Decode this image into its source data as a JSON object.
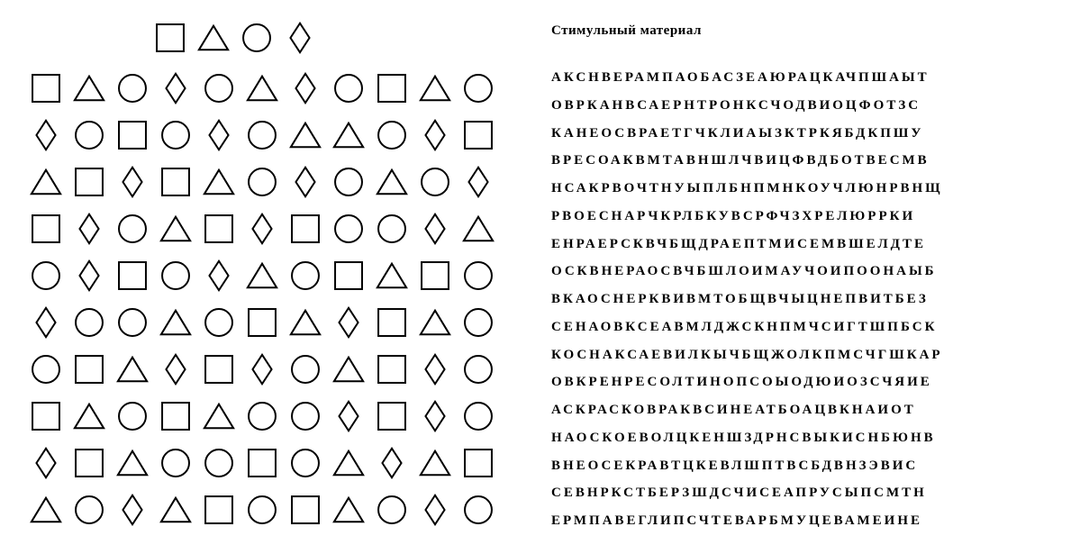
{
  "title": "Стимульный материал",
  "letter_rows": [
    "АКСНВЕРАМПАОБАСЗЕАЮРАЦКАЧПШАЫТ",
    "ОВРКАНВСАЕРНТРОНКСЧОДВИОЦФОТЗС",
    "КАНЕОСВРАЕТГЧКЛИАЫЗКТРКЯБДКПШУ",
    "ВРЕСОАКВМТАВНШЛЧВИЦФВДБОТВЕСМВ",
    "НСАКРВОЧТНУЫПЛБНПМНКОУЧЛЮНРВНЩ",
    "РВОЕСНАРЧКРЛБКУВСРФЧЗХРЕЛЮРРКИ",
    "ЕНРАЕРСКВЧБЩДРАЕПТМИСЕМВШЕЛДТЕ",
    "ОСКВНЕРАОСВЧБШЛОИМАУЧОИПООНАЫБ",
    "ВКАОСНЕРКВИВМТОБЩВЧЫЦНЕПВИТБЕЗ",
    "СЕНАОВКСЕАВМЛДЖСКНПМЧСИГТШПБСК",
    "КОСНАКСАЕВИЛКЫЧБЩЖОЛКПМСЧГШКАР",
    "ОВКРЕНРЕСОЛТИНОПСОЫОДЮИОЗСЧЯИЕ",
    "АСКРАСКОВРАКВСИНЕАТБОАЦВКНАИОТ",
    "НАОСКОЕВОЛЦКЕНШЗДРНСВЫКИСНБЮНВ",
    "ВНЕОСЕКРАВТЦКЕВЛШПТВСБДВНЗЭВИС",
    "СЕВНРКСТБЕРЗШДСЧИСЕАПРУСЫПСМТН",
    "ЕРМПАВЕГЛИПСЧТЕВАРБМУЦЕВАМЕИНЕ"
  ],
  "shape_header": [
    "square",
    "triangle",
    "circle",
    "diamond"
  ],
  "shape_rows": [
    [
      "square",
      "triangle",
      "circle",
      "diamond",
      "circle",
      "triangle",
      "diamond",
      "circle",
      "square",
      "triangle",
      "circle"
    ],
    [
      "diamond",
      "circle",
      "square",
      "circle",
      "diamond",
      "circle",
      "triangle",
      "triangle",
      "circle",
      "diamond",
      "square"
    ],
    [
      "triangle",
      "square",
      "diamond",
      "square",
      "triangle",
      "circle",
      "diamond",
      "circle",
      "triangle",
      "circle",
      "diamond"
    ],
    [
      "square",
      "diamond",
      "circle",
      "triangle",
      "square",
      "diamond",
      "square",
      "circle",
      "circle",
      "diamond",
      "triangle"
    ],
    [
      "circle",
      "diamond",
      "square",
      "circle",
      "diamond",
      "triangle",
      "circle",
      "square",
      "triangle",
      "square",
      "circle"
    ],
    [
      "diamond",
      "circle",
      "circle",
      "triangle",
      "circle",
      "square",
      "triangle",
      "diamond",
      "square",
      "triangle",
      "circle"
    ],
    [
      "circle",
      "square",
      "triangle",
      "diamond",
      "square",
      "diamond",
      "circle",
      "triangle",
      "square",
      "diamond",
      "circle"
    ],
    [
      "square",
      "triangle",
      "circle",
      "square",
      "triangle",
      "circle",
      "circle",
      "diamond",
      "square",
      "diamond",
      "circle"
    ],
    [
      "diamond",
      "square",
      "triangle",
      "circle",
      "circle",
      "square",
      "circle",
      "triangle",
      "diamond",
      "triangle",
      "square"
    ],
    [
      "triangle",
      "circle",
      "diamond",
      "triangle",
      "square",
      "circle",
      "square",
      "triangle",
      "circle",
      "diamond",
      "circle"
    ]
  ],
  "style": {
    "stroke": "#000000",
    "stroke_width": 2,
    "shape_size": 34,
    "bg": "#ffffff"
  }
}
